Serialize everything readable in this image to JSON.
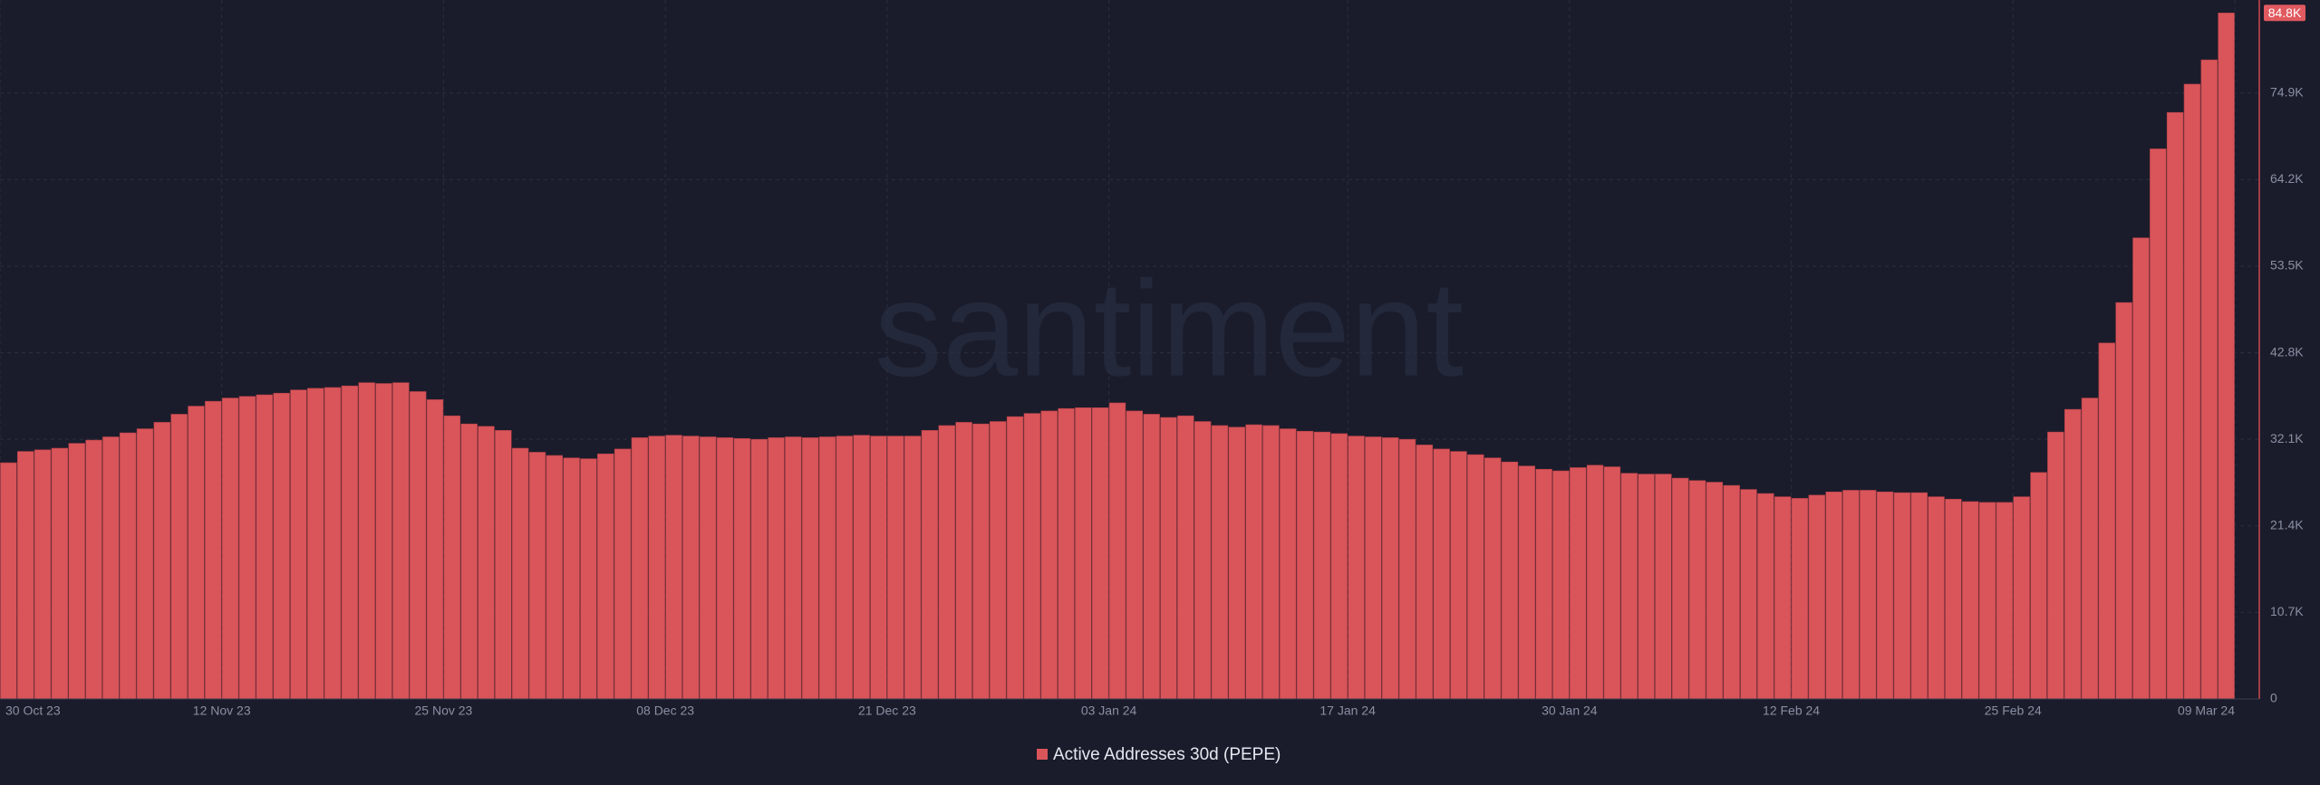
{
  "chart_data": {
    "type": "bar",
    "watermark": "santiment",
    "color": "#d9555a",
    "grid": true,
    "series": [
      {
        "name": "Active Addresses 30d (PEPE)",
        "color": "#d9555a",
        "values": [
          29200,
          30600,
          30800,
          31000,
          31600,
          32000,
          32400,
          32900,
          33400,
          34200,
          35200,
          36200,
          36800,
          37200,
          37400,
          37600,
          37800,
          38200,
          38400,
          38500,
          38700,
          39100,
          39000,
          39100,
          38000,
          37000,
          35000,
          34000,
          33700,
          33200,
          31000,
          30500,
          30100,
          29800,
          29700,
          30300,
          30900,
          32300,
          32500,
          32600,
          32500,
          32400,
          32300,
          32200,
          32100,
          32300,
          32400,
          32300,
          32400,
          32500,
          32600,
          32500,
          32500,
          32500,
          33200,
          33800,
          34200,
          34000,
          34300,
          34900,
          35300,
          35600,
          35900,
          36000,
          36000,
          36600,
          35600,
          35200,
          34800,
          35000,
          34300,
          33800,
          33600,
          33900,
          33800,
          33400,
          33100,
          33000,
          32800,
          32500,
          32400,
          32300,
          32100,
          31400,
          30900,
          30600,
          30200,
          29800,
          29300,
          28800,
          28400,
          28200,
          28600,
          28900,
          28700,
          27900,
          27800,
          27800,
          27300,
          27000,
          26800,
          26400,
          25900,
          25400,
          25000,
          24800,
          25200,
          25600,
          25800,
          25800,
          25600,
          25500,
          25500,
          25000,
          24700,
          24400,
          24300,
          24300,
          25000,
          28000,
          33000,
          35800,
          37200,
          44000,
          49000,
          57000,
          68000,
          72500,
          76000,
          79000,
          84800
        ]
      }
    ],
    "x": [
      "2023-10-30",
      "2023-10-31",
      "2023-11-01",
      "2023-11-02",
      "2023-11-03",
      "2023-11-04",
      "2023-11-05",
      "2023-11-06",
      "2023-11-07",
      "2023-11-08",
      "2023-11-09",
      "2023-11-10",
      "2023-11-11",
      "2023-11-12",
      "2023-11-13",
      "2023-11-14",
      "2023-11-15",
      "2023-11-16",
      "2023-11-17",
      "2023-11-18",
      "2023-11-19",
      "2023-11-20",
      "2023-11-21",
      "2023-11-22",
      "2023-11-23",
      "2023-11-24",
      "2023-11-25",
      "2023-11-26",
      "2023-11-27",
      "2023-11-28",
      "2023-11-29",
      "2023-11-30",
      "2023-12-01",
      "2023-12-02",
      "2023-12-03",
      "2023-12-04",
      "2023-12-05",
      "2023-12-06",
      "2023-12-07",
      "2023-12-08",
      "2023-12-09",
      "2023-12-10",
      "2023-12-11",
      "2023-12-12",
      "2023-12-13",
      "2023-12-14",
      "2023-12-15",
      "2023-12-16",
      "2023-12-17",
      "2023-12-18",
      "2023-12-19",
      "2023-12-20",
      "2023-12-21",
      "2023-12-22",
      "2023-12-23",
      "2023-12-24",
      "2023-12-25",
      "2023-12-26",
      "2023-12-27",
      "2023-12-28",
      "2023-12-29",
      "2023-12-30",
      "2023-12-31",
      "2024-01-01",
      "2024-01-02",
      "2024-01-03",
      "2024-01-04",
      "2024-01-05",
      "2024-01-06",
      "2024-01-07",
      "2024-01-08",
      "2024-01-09",
      "2024-01-10",
      "2024-01-11",
      "2024-01-12",
      "2024-01-13",
      "2024-01-14",
      "2024-01-15",
      "2024-01-16",
      "2024-01-17",
      "2024-01-18",
      "2024-01-19",
      "2024-01-20",
      "2024-01-21",
      "2024-01-22",
      "2024-01-23",
      "2024-01-24",
      "2024-01-25",
      "2024-01-26",
      "2024-01-27",
      "2024-01-28",
      "2024-01-29",
      "2024-01-30",
      "2024-01-31",
      "2024-02-01",
      "2024-02-02",
      "2024-02-03",
      "2024-02-04",
      "2024-02-05",
      "2024-02-06",
      "2024-02-07",
      "2024-02-08",
      "2024-02-09",
      "2024-02-10",
      "2024-02-11",
      "2024-02-12",
      "2024-02-13",
      "2024-02-14",
      "2024-02-15",
      "2024-02-16",
      "2024-02-17",
      "2024-02-18",
      "2024-02-19",
      "2024-02-20",
      "2024-02-21",
      "2024-02-22",
      "2024-02-23",
      "2024-02-24",
      "2024-02-25",
      "2024-02-26",
      "2024-02-27",
      "2024-02-28",
      "2024-02-29",
      "2024-03-01",
      "2024-03-02",
      "2024-03-03",
      "2024-03-04",
      "2024-03-05",
      "2024-03-06",
      "2024-03-07",
      "2024-03-08"
    ],
    "xlim": [
      "2023-10-30",
      "2024-03-09"
    ],
    "xticks": [
      {
        "value": "2023-10-30",
        "label": "30 Oct 23"
      },
      {
        "value": "2023-11-12",
        "label": "12 Nov 23"
      },
      {
        "value": "2023-11-25",
        "label": "25 Nov 23"
      },
      {
        "value": "2023-12-08",
        "label": "08 Dec 23"
      },
      {
        "value": "2023-12-21",
        "label": "21 Dec 23"
      },
      {
        "value": "2024-01-03",
        "label": "03 Jan 24"
      },
      {
        "value": "2024-01-17",
        "label": "17 Jan 24"
      },
      {
        "value": "2024-01-30",
        "label": "30 Jan 24"
      },
      {
        "value": "2024-02-12",
        "label": "12 Feb 24"
      },
      {
        "value": "2024-02-25",
        "label": "25 Feb 24"
      },
      {
        "value": "2024-03-09",
        "label": "09 Mar 24"
      }
    ],
    "ylim": [
      0,
      86400
    ],
    "yticks": [
      0,
      {
        "value": 10700,
        "label": "10.7K"
      },
      {
        "value": 21400,
        "label": "21.4K"
      },
      {
        "value": 32100,
        "label": "32.1K"
      },
      {
        "value": 42800,
        "label": "42.8K"
      },
      {
        "value": 53500,
        "label": "53.5K"
      },
      {
        "value": 64200,
        "label": "64.2K"
      },
      {
        "value": 74900,
        "label": "74.9K"
      }
    ],
    "last_value": {
      "value": 84800,
      "label": "84.8K"
    }
  }
}
